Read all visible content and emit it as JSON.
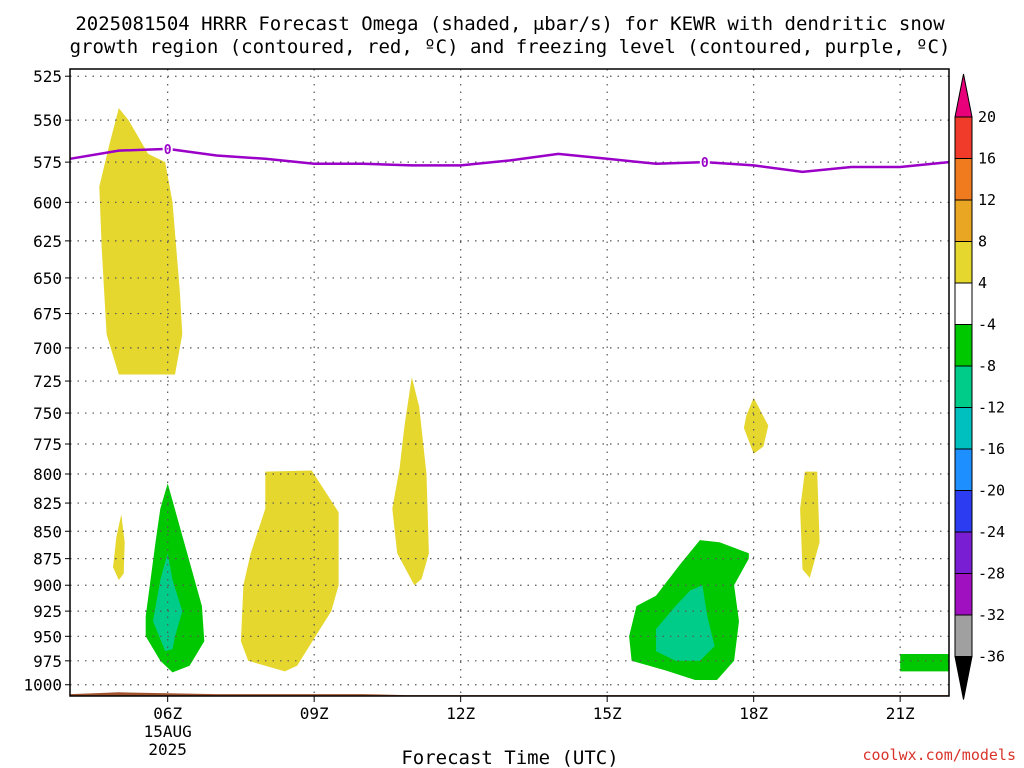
{
  "title_line1": "2025081504 HRRR Forecast Omega (shaded, μbar/s) for KEWR with dendritic snow",
  "title_line2": "growth region (contoured, red, ºC) and freezing level (contoured, purple, ºC)",
  "credit": "coolwx.com/models",
  "chart_data": {
    "type": "contour-time-height",
    "title": "2025081504 HRRR Forecast Omega (shaded, μbar/s) for KEWR with dendritic snow growth region (contoured, red, ºC) and freezing level (contoured, purple, ºC)",
    "xlabel": "Forecast Time (UTC)",
    "ylabel": "",
    "x_unit": "hours (UTC, 15 Aug 2025)",
    "xlim": [
      4.0,
      22.0
    ],
    "ylim": [
      1012,
      521
    ],
    "x_ticks": [
      {
        "value": 6,
        "label": "06Z",
        "sub1": "15AUG",
        "sub2": "2025"
      },
      {
        "value": 9,
        "label": "09Z"
      },
      {
        "value": 12,
        "label": "12Z"
      },
      {
        "value": 15,
        "label": "15Z"
      },
      {
        "value": 18,
        "label": "18Z"
      },
      {
        "value": 21,
        "label": "21Z"
      }
    ],
    "y_ticks": [
      525,
      550,
      575,
      600,
      625,
      650,
      675,
      700,
      725,
      750,
      775,
      800,
      825,
      850,
      875,
      900,
      925,
      950,
      975,
      1000
    ],
    "grid": true,
    "colorbar": {
      "labels": [
        "20",
        "16",
        "12",
        "8",
        "4",
        "-4",
        "-8",
        "-12",
        "-16",
        "-20",
        "-24",
        "-28",
        "-32",
        "-36"
      ],
      "colors": [
        "#e8007a",
        "#f03a2a",
        "#f07b1e",
        "#e9a623",
        "#e6d72e",
        "#ffffff",
        "#00c800",
        "#00cc8a",
        "#00bfbf",
        "#1e8fff",
        "#2c3cf0",
        "#7a1ed4",
        "#a010c0",
        "#a0a0a0",
        "#000000"
      ]
    },
    "freezing_level": {
      "label": "0",
      "label_x": [
        6.0,
        17.0
      ],
      "points": [
        [
          4.0,
          573
        ],
        [
          5.0,
          568
        ],
        [
          6.0,
          567
        ],
        [
          7.0,
          571
        ],
        [
          8.0,
          573
        ],
        [
          9.0,
          576
        ],
        [
          10.0,
          576
        ],
        [
          11.0,
          577
        ],
        [
          12.0,
          577
        ],
        [
          13.0,
          574
        ],
        [
          14.0,
          570
        ],
        [
          15.0,
          573
        ],
        [
          16.0,
          576
        ],
        [
          17.0,
          575
        ],
        [
          18.0,
          577
        ],
        [
          19.0,
          581
        ],
        [
          20.0,
          578
        ],
        [
          21.0,
          578
        ],
        [
          22.0,
          575
        ]
      ]
    },
    "omega_regions": [
      {
        "level": "4 to 8",
        "color": "#e6d72e",
        "points": [
          [
            5.0,
            720
          ],
          [
            4.75,
            690
          ],
          [
            4.65,
            630
          ],
          [
            4.6,
            590
          ],
          [
            4.8,
            565
          ],
          [
            5.0,
            543
          ],
          [
            5.2,
            550
          ],
          [
            5.6,
            570
          ],
          [
            5.95,
            575
          ],
          [
            6.1,
            600
          ],
          [
            6.25,
            660
          ],
          [
            6.3,
            690
          ],
          [
            6.15,
            720
          ]
        ]
      },
      {
        "level": "4 to 8",
        "color": "#e6d72e",
        "points": [
          [
            4.88,
            883
          ],
          [
            4.95,
            855
          ],
          [
            5.05,
            835
          ],
          [
            5.12,
            860
          ],
          [
            5.1,
            889
          ],
          [
            5.0,
            895
          ]
        ]
      },
      {
        "level": "4 to 8",
        "color": "#e6d72e",
        "points": [
          [
            8.0,
            798
          ],
          [
            8.95,
            797
          ],
          [
            9.5,
            833
          ],
          [
            9.5,
            900
          ],
          [
            9.35,
            925
          ],
          [
            8.65,
            980
          ],
          [
            8.4,
            986
          ],
          [
            7.65,
            975
          ],
          [
            7.5,
            955
          ],
          [
            7.55,
            900
          ],
          [
            7.7,
            870
          ],
          [
            8.0,
            830
          ]
        ]
      },
      {
        "level": "4 to 8",
        "color": "#e6d72e",
        "points": [
          [
            11.0,
            722
          ],
          [
            11.15,
            745
          ],
          [
            11.3,
            800
          ],
          [
            11.35,
            870
          ],
          [
            11.2,
            894
          ],
          [
            11.05,
            900
          ],
          [
            10.7,
            870
          ],
          [
            10.6,
            830
          ],
          [
            10.75,
            795
          ],
          [
            10.85,
            760
          ]
        ]
      },
      {
        "level": "4 to 8",
        "color": "#e6d72e",
        "points": [
          [
            18.0,
            738
          ],
          [
            18.3,
            760
          ],
          [
            18.2,
            777
          ],
          [
            18.0,
            783
          ],
          [
            17.8,
            762
          ],
          [
            17.85,
            752
          ]
        ]
      },
      {
        "level": "4 to 8",
        "color": "#e6d72e",
        "points": [
          [
            19.05,
            798
          ],
          [
            19.3,
            798
          ],
          [
            19.35,
            860
          ],
          [
            19.15,
            893
          ],
          [
            19.0,
            885
          ],
          [
            18.95,
            830
          ]
        ]
      },
      {
        "level": "-4 to -8",
        "color": "#00c800",
        "points": [
          [
            6.0,
            808
          ],
          [
            6.4,
            870
          ],
          [
            6.7,
            920
          ],
          [
            6.75,
            955
          ],
          [
            6.45,
            980
          ],
          [
            6.1,
            987
          ],
          [
            5.85,
            975
          ],
          [
            5.55,
            950
          ],
          [
            5.55,
            930
          ],
          [
            5.75,
            860
          ],
          [
            5.85,
            830
          ]
        ]
      },
      {
        "level": "-8 to -12",
        "color": "#00cc8a",
        "points": [
          [
            6.0,
            870
          ],
          [
            6.1,
            895
          ],
          [
            6.3,
            925
          ],
          [
            6.15,
            950
          ],
          [
            6.1,
            963
          ],
          [
            5.95,
            965
          ],
          [
            5.7,
            935
          ],
          [
            5.85,
            895
          ]
        ]
      },
      {
        "level": "-4 to -8",
        "color": "#00c800",
        "points": [
          [
            16.0,
            910
          ],
          [
            16.5,
            880
          ],
          [
            16.9,
            858
          ],
          [
            17.3,
            860
          ],
          [
            17.9,
            870
          ],
          [
            17.9,
            875
          ],
          [
            17.6,
            900
          ],
          [
            17.7,
            935
          ],
          [
            17.6,
            975
          ],
          [
            17.25,
            995
          ],
          [
            16.8,
            995
          ],
          [
            16.2,
            985
          ],
          [
            15.5,
            975
          ],
          [
            15.45,
            950
          ],
          [
            15.6,
            920
          ]
        ]
      },
      {
        "level": "-8 to -12",
        "color": "#00cc8a",
        "points": [
          [
            16.7,
            905
          ],
          [
            16.95,
            900
          ],
          [
            17.05,
            930
          ],
          [
            17.2,
            960
          ],
          [
            16.9,
            975
          ],
          [
            16.4,
            975
          ],
          [
            16.0,
            965
          ],
          [
            16.0,
            943
          ],
          [
            16.4,
            920
          ]
        ]
      },
      {
        "level": "-4 to -8",
        "color": "#00c800",
        "points": [
          [
            21.0,
            968
          ],
          [
            22.0,
            968
          ],
          [
            22.0,
            986
          ],
          [
            21.0,
            986
          ]
        ]
      }
    ],
    "terrain": {
      "color": "#a0522d",
      "points": [
        [
          4.0,
          1010
        ],
        [
          4.5,
          1009
        ],
        [
          5.0,
          1008
        ],
        [
          6.0,
          1009
        ],
        [
          7.0,
          1010
        ],
        [
          8.0,
          1010
        ],
        [
          10.0,
          1010
        ],
        [
          10.9,
          1011
        ],
        [
          12.0,
          1011
        ],
        [
          22.0,
          1011
        ]
      ]
    }
  }
}
